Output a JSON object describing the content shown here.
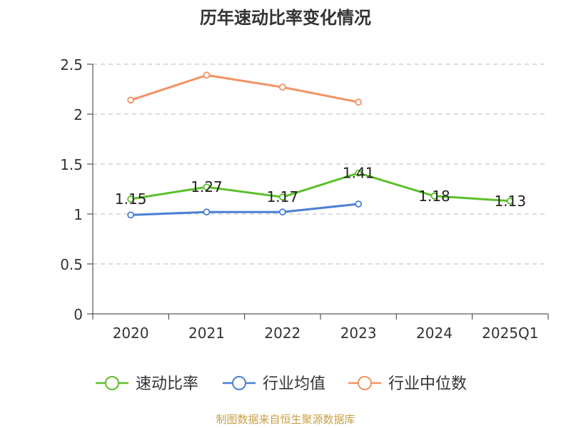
{
  "chart_data": {
    "type": "line",
    "title": "历年速动比率变化情况",
    "categories": [
      "2020",
      "2021",
      "2022",
      "2023",
      "2024",
      "2025Q1"
    ],
    "ylim": [
      0,
      2.5
    ],
    "yticks": [
      "0",
      "0.5",
      "1",
      "1.5",
      "2",
      "2.5"
    ],
    "grid": "horizontal-dashed",
    "legend_position": "bottom",
    "series": [
      {
        "name": "速动比率",
        "color": "#5cc02a",
        "values": [
          1.15,
          1.27,
          1.17,
          1.41,
          1.18,
          1.13
        ],
        "labels": [
          "1.15",
          "1.27",
          "1.17",
          "1.41",
          "1.18",
          "1.13"
        ]
      },
      {
        "name": "行业均值",
        "color": "#4a7fd6",
        "values": [
          0.99,
          1.02,
          1.02,
          1.1,
          null,
          null
        ]
      },
      {
        "name": "行业中位数",
        "color": "#f39262",
        "values": [
          2.14,
          2.39,
          2.27,
          2.12,
          null,
          null
        ]
      }
    ]
  },
  "footer": {
    "source": "制图数据来自恒生聚源数据库"
  }
}
